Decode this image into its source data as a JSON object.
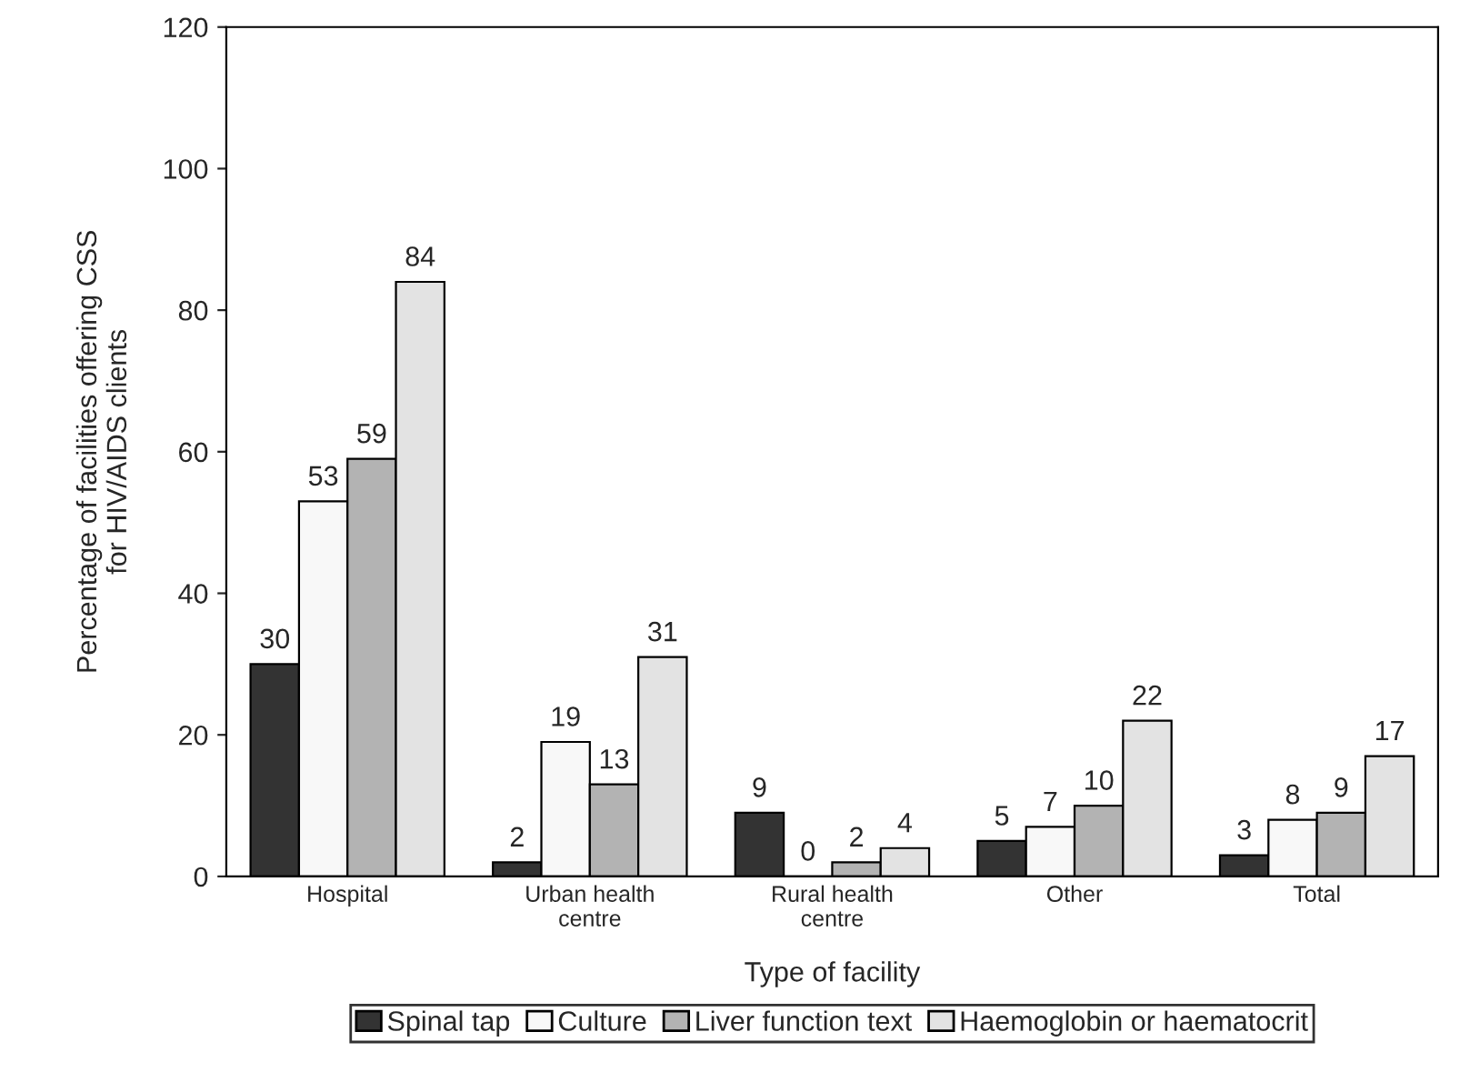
{
  "chart_data": {
    "type": "bar",
    "xlabel": "Type of facility",
    "ylabel": "Percentage of facilities offering CSS\nfor HIV/AIDS clients",
    "categories": [
      "Hospital",
      "Urban health\ncentre",
      "Rural health\ncentre",
      "Other",
      "Total"
    ],
    "series": [
      {
        "name": "Spinal tap",
        "color": "#333333",
        "values": [
          30,
          2,
          9,
          5,
          3
        ]
      },
      {
        "name": "Culture",
        "color": "#f8f8f8",
        "values": [
          53,
          19,
          0,
          7,
          8
        ]
      },
      {
        "name": "Liver function text",
        "color": "#b3b3b3",
        "values": [
          59,
          13,
          2,
          10,
          9
        ]
      },
      {
        "name": "Haemoglobin or haematocrit",
        "color": "#e3e3e3",
        "values": [
          84,
          31,
          4,
          22,
          17
        ]
      }
    ],
    "ylim": [
      0,
      120
    ],
    "yticks": [
      0,
      20,
      40,
      60,
      80,
      100,
      120
    ],
    "grid": false,
    "legend": "bottom",
    "data_labels": true
  }
}
